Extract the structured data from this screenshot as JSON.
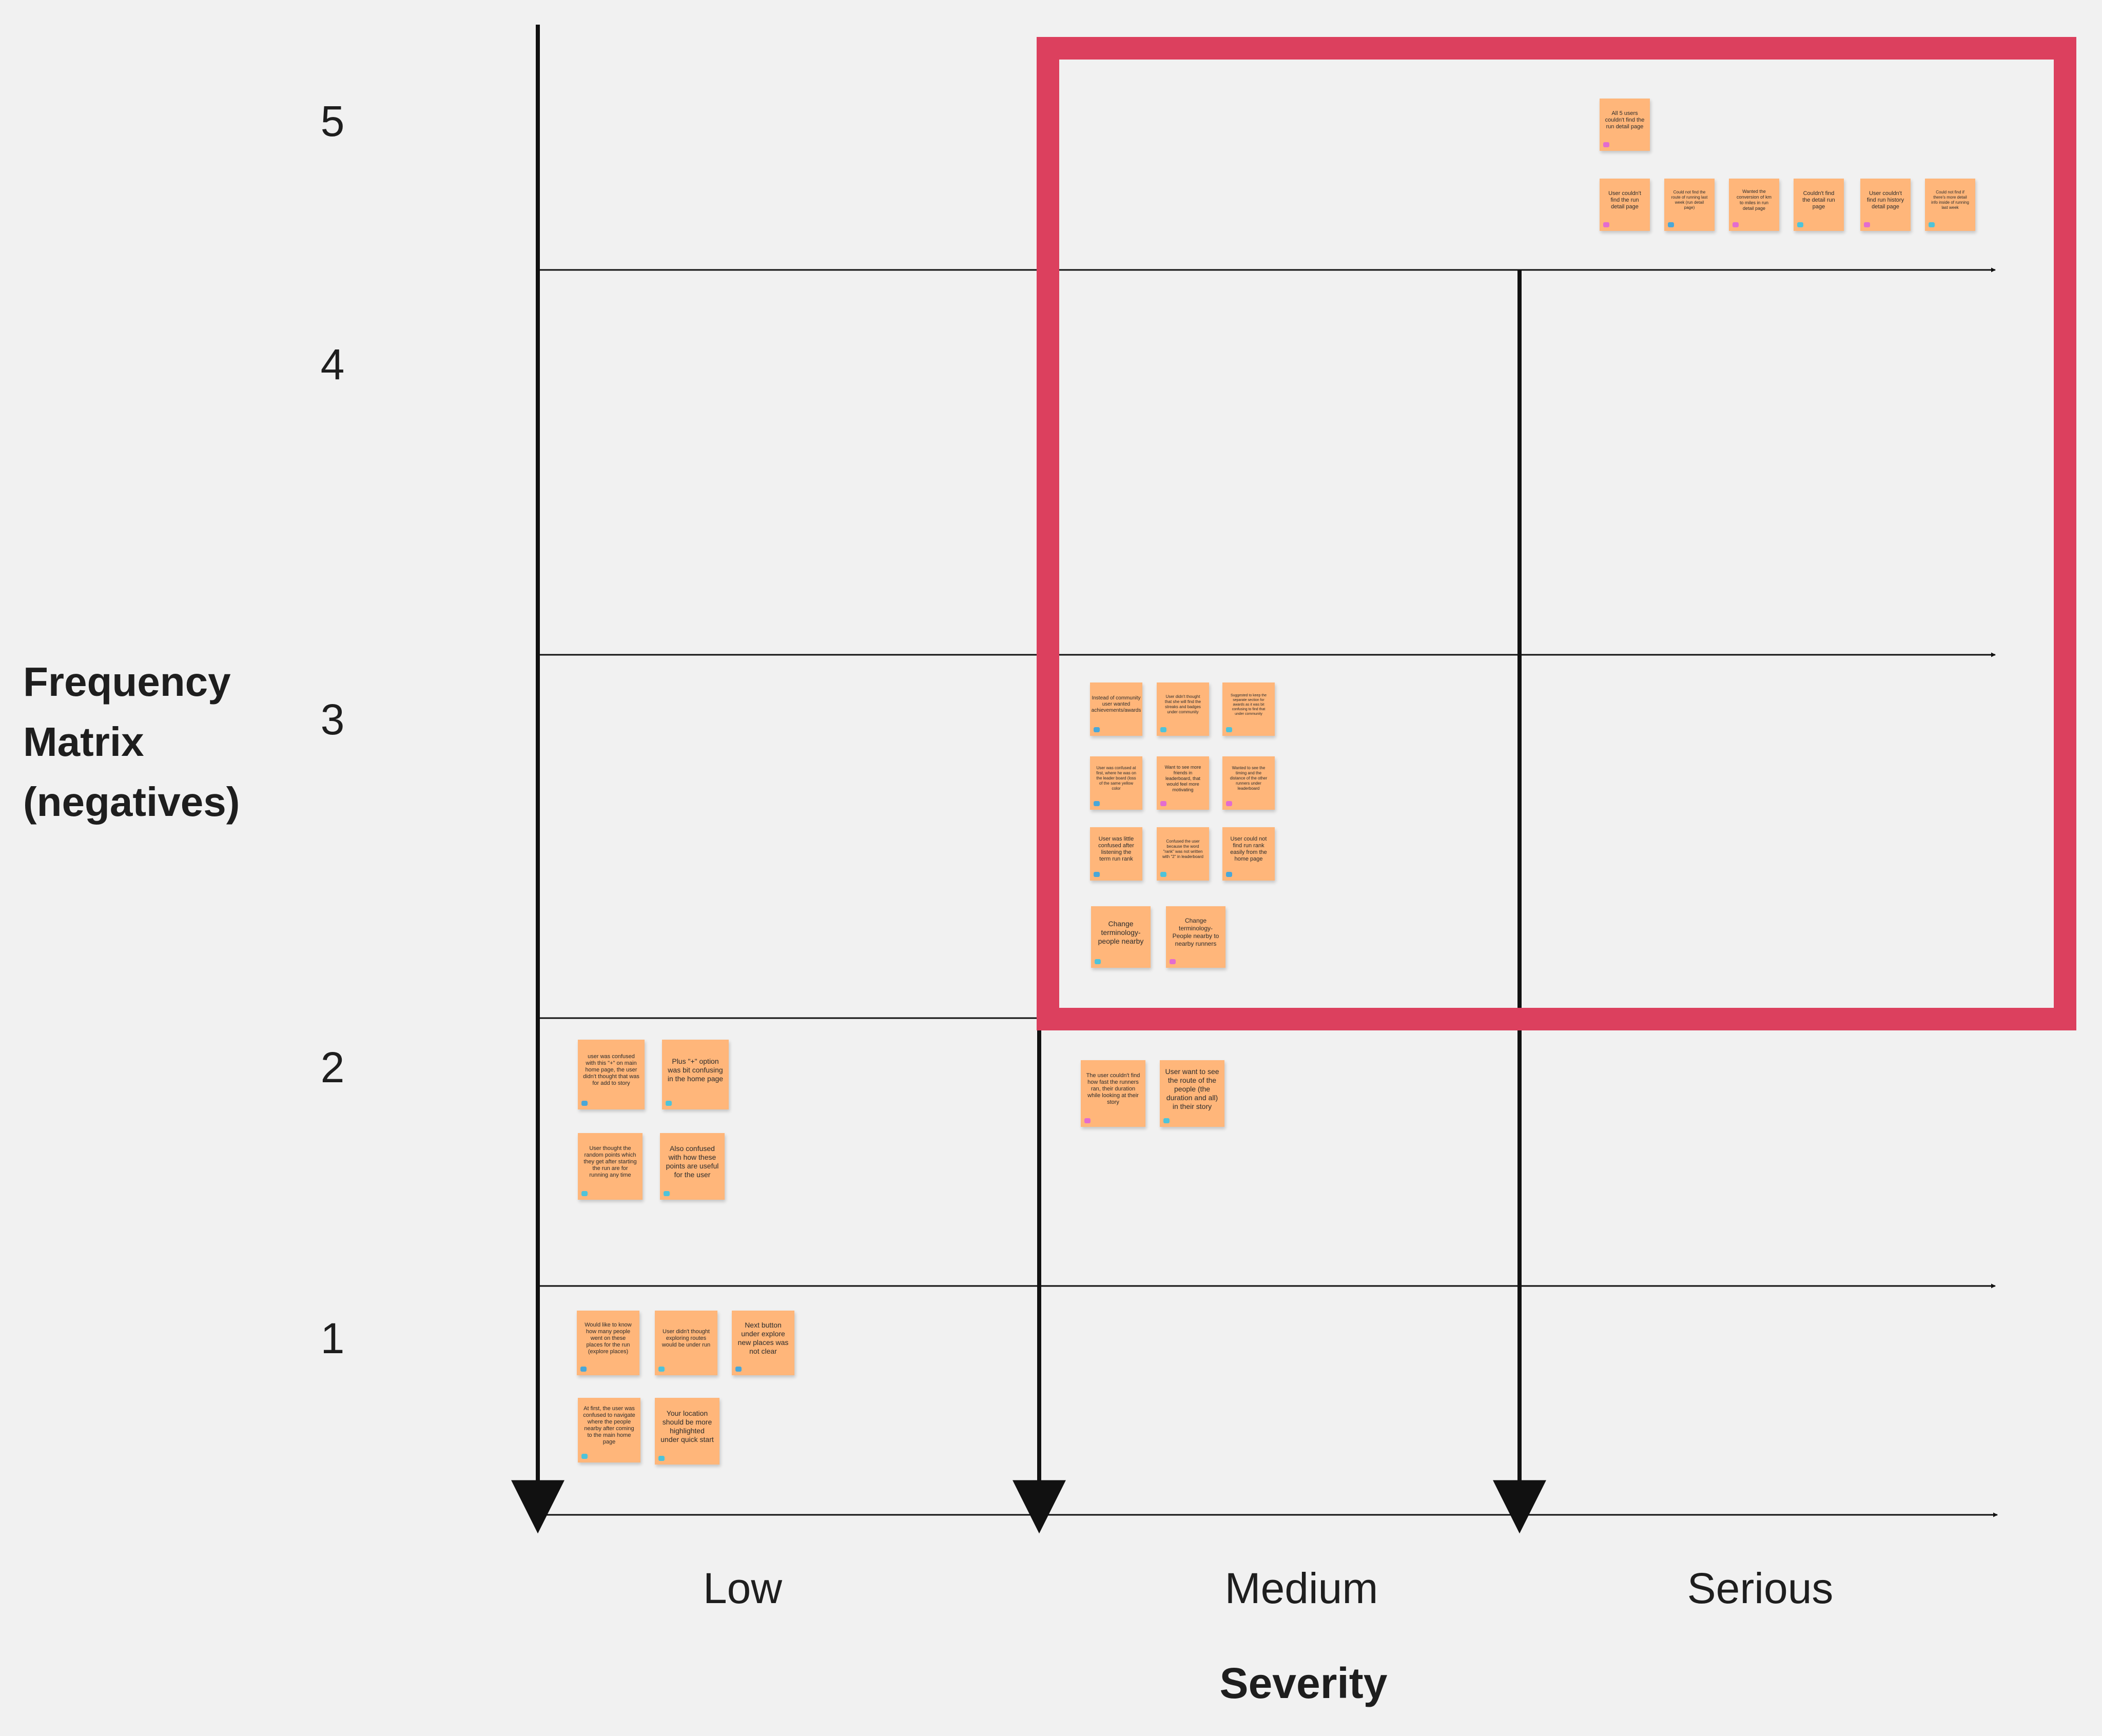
{
  "matrix": {
    "title": "Frequency\nMatrix\n(negatives)",
    "rows": [
      "5",
      "4",
      "3",
      "2",
      "1"
    ],
    "columns": [
      "Low",
      "Medium",
      "Serious"
    ],
    "x_axis_title": "Severity",
    "highlight_color": "#dc405e",
    "sticky_color": "#ffb67a"
  },
  "stickies": {
    "f5_serious": [
      {
        "text": "All 5 users couldn't find the run detail page",
        "tag": "#e36ccf"
      },
      {
        "text": "User couldn't find the run detail page",
        "tag": "#e36ccf"
      },
      {
        "text": "Could not find the route of running last week (run detail page)",
        "tag": "#4aa7d8"
      },
      {
        "text": "Wanted the conversion of km to miles in run detail page",
        "tag": "#e36ccf"
      },
      {
        "text": "Couldn't find the detail run page",
        "tag": "#4fc3d9"
      },
      {
        "text": "User couldn't find run history detail page",
        "tag": "#e36ccf"
      },
      {
        "text": "Could not find if there's more detail info inside of running last week",
        "tag": "#4fc3d9"
      }
    ],
    "f3_medium": [
      {
        "text": "Instead of community user wanted achievements/awards",
        "tag": "#4aa7d8"
      },
      {
        "text": "User didn't thought that she will find the streaks and badges under community",
        "tag": "#4fc3d9"
      },
      {
        "text": "Suggested to keep the separate section for awards as it was bit confusing to find that under community",
        "tag": "#4fc3d9"
      },
      {
        "text": "User was confused at first, where he was on the leader board (loss of the same yellow color",
        "tag": "#4aa7d8"
      },
      {
        "text": "Want to see more friends in leaderboard, that would feel more motivating",
        "tag": "#e36ccf"
      },
      {
        "text": "Wanted to see the timing and the distance of the other runners under leaderboard",
        "tag": "#e36ccf"
      },
      {
        "text": "User was little confused after listening the term run rank",
        "tag": "#4aa7d8"
      },
      {
        "text": "Confused the user because the word \"rank\" was not written with \"2\" in leaderboard",
        "tag": "#4fc3d9"
      },
      {
        "text": "User could not find run rank easily from the home page",
        "tag": "#4aa7d8"
      },
      {
        "text": "Change terminology- people nearby",
        "tag": "#4fc3d9"
      },
      {
        "text": "Change terminology- People nearby to nearby runners",
        "tag": "#e36ccf"
      }
    ],
    "f2_low": [
      {
        "text": "user was confused with this \"+\" on main home page, the user didn't thought that was for add to story",
        "tag": "#4aa7d8"
      },
      {
        "text": "Plus \"+\" option was bit confusing in the home page",
        "tag": "#4fc3d9"
      },
      {
        "text": "User thought the random points which they get after starting the run are for running any time",
        "tag": "#4fc3d9"
      },
      {
        "text": "Also confused with how these points are useful for the user",
        "tag": "#4fc3d9"
      }
    ],
    "f2_medium": [
      {
        "text": "The user couldn't find how fast the runners ran, their duration while looking at their story",
        "tag": "#e36ccf"
      },
      {
        "text": "User want to see the route of the people (the duration and all) in their story",
        "tag": "#4fc3d9"
      }
    ],
    "f1_low": [
      {
        "text": "Would like to know how many people went on these places for the run (explore places)",
        "tag": "#4aa7d8"
      },
      {
        "text": "User didn't thought exploring routes would be under run",
        "tag": "#4fc3d9"
      },
      {
        "text": "Next button under explore new places was not clear",
        "tag": "#4aa7d8"
      },
      {
        "text": "At first, the user was confused to navigate where the people nearby after coming to the main home page",
        "tag": "#4fc3d9"
      },
      {
        "text": "Your location should be more highlighted under quick start",
        "tag": "#4fc3d9"
      }
    ]
  }
}
